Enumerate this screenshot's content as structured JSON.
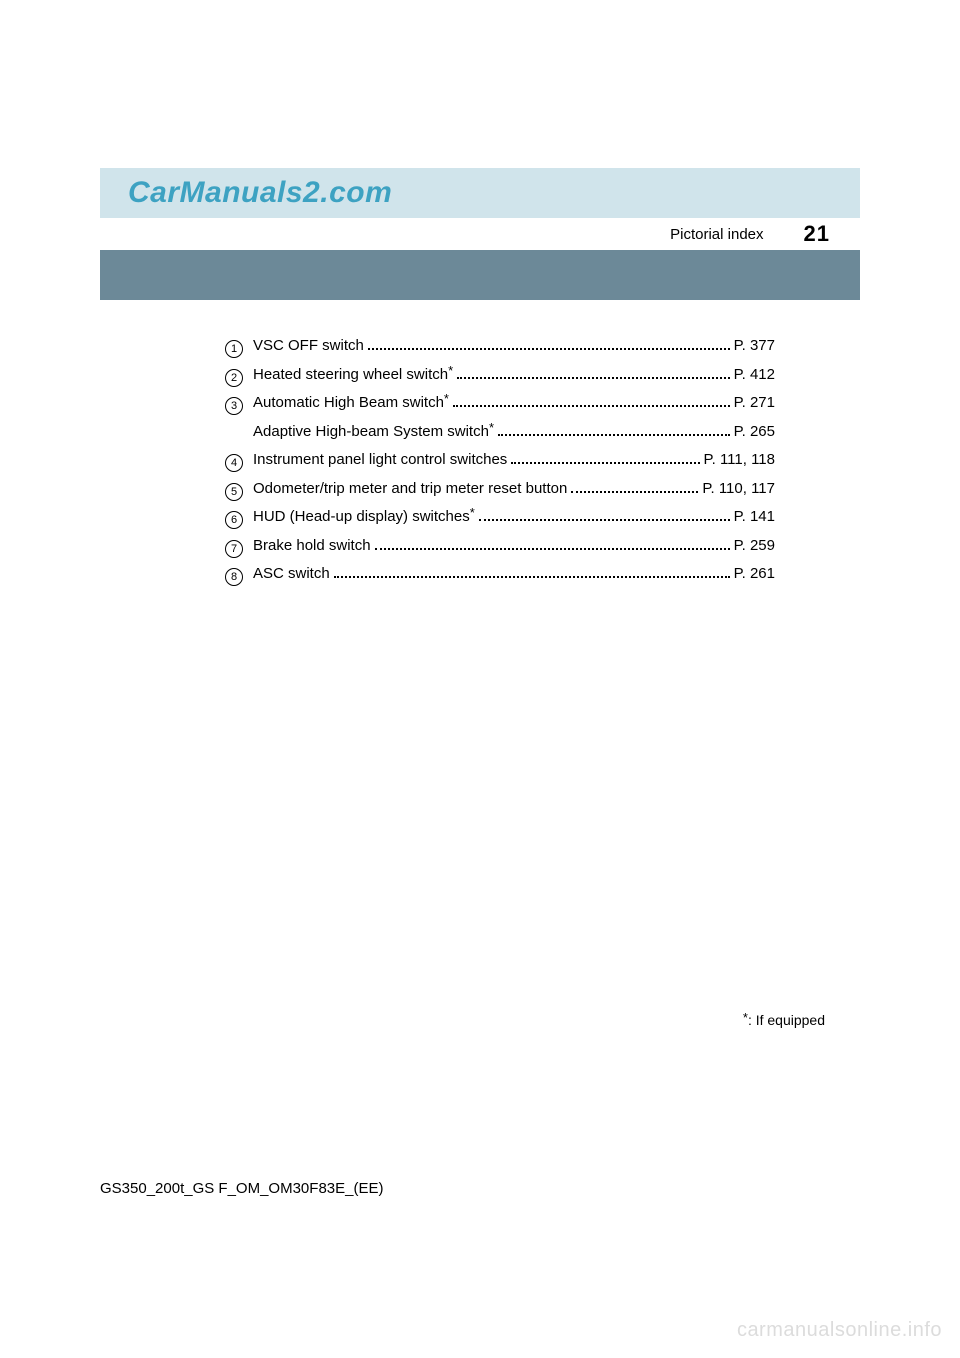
{
  "colors": {
    "banner_bg": "#d0e4eb",
    "brand_text": "#3da2c2",
    "blue_bar": "#6c8998",
    "watermark": "#dcdcdc",
    "text": "#000000",
    "page_bg": "#ffffff"
  },
  "header": {
    "brand": "CarManuals2.com",
    "section_label": "Pictorial index",
    "page_number": "21"
  },
  "index": [
    {
      "n": "1",
      "label": "VSC OFF switch",
      "star": false,
      "page": "P. 377"
    },
    {
      "n": "2",
      "label": "Heated steering wheel switch",
      "star": true,
      "page": "P. 412"
    },
    {
      "n": "3",
      "label": "Automatic High Beam switch",
      "star": true,
      "page": "P. 271",
      "sub": {
        "label": "Adaptive High-beam System switch",
        "star": true,
        "page": "P. 265"
      }
    },
    {
      "n": "4",
      "label": "Instrument panel light control switches",
      "star": false,
      "page": "P. 111, 118"
    },
    {
      "n": "5",
      "label": "Odometer/trip meter and trip meter reset button",
      "star": false,
      "page": "P. 110, 117"
    },
    {
      "n": "6",
      "label": "HUD (Head-up display) switches",
      "star": true,
      "page": "P. 141"
    },
    {
      "n": "7",
      "label": "Brake hold switch",
      "star": false,
      "page": "P. 259"
    },
    {
      "n": "8",
      "label": "ASC switch",
      "star": false,
      "page": "P. 261"
    }
  ],
  "footnote": ": If equipped",
  "doc_code": "GS350_200t_GS F_OM_OM30F83E_(EE)",
  "site_watermark": "carmanualsonline.info"
}
